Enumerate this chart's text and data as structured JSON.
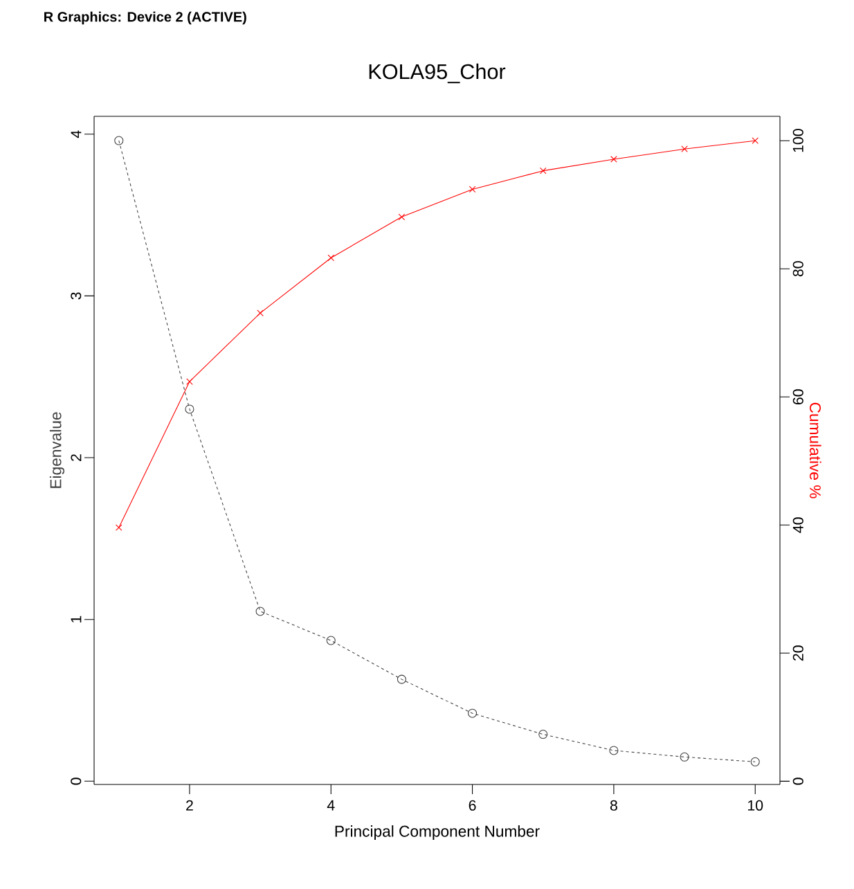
{
  "chart_data": {
    "type": "line",
    "title": "KOLA95_Chor",
    "xlabel": "Principal Component Number",
    "ylabel": "Eigenvalue",
    "y2label": "Cumulative %",
    "annotations": [
      "R Graphics: Device 2 (ACTIVE)"
    ],
    "x": [
      1,
      2,
      3,
      4,
      5,
      6,
      7,
      8,
      9,
      10
    ],
    "xlim": [
      0.65,
      10.35
    ],
    "xticks": [
      2,
      4,
      6,
      8,
      10
    ],
    "ylim": [
      -0.02,
      4.11
    ],
    "yticks": [
      0,
      1,
      2,
      3,
      4
    ],
    "y2lim": [
      -0.5,
      103.8
    ],
    "y2ticks": [
      0,
      20,
      40,
      60,
      80,
      100
    ],
    "series": [
      {
        "color": "#404040",
        "marker": "circle",
        "line_style": "dashed",
        "values": [
          3.96,
          2.3,
          1.05,
          0.87,
          0.63,
          0.42,
          0.29,
          0.19,
          0.15,
          0.12
        ]
      },
      {
        "color": "#ff0000",
        "marker": "cross",
        "line_style": "solid",
        "axis": "y2",
        "values": [
          39.6,
          62.4,
          73.1,
          81.7,
          88.1,
          92.4,
          95.3,
          97.1,
          98.7,
          100
        ]
      }
    ]
  }
}
